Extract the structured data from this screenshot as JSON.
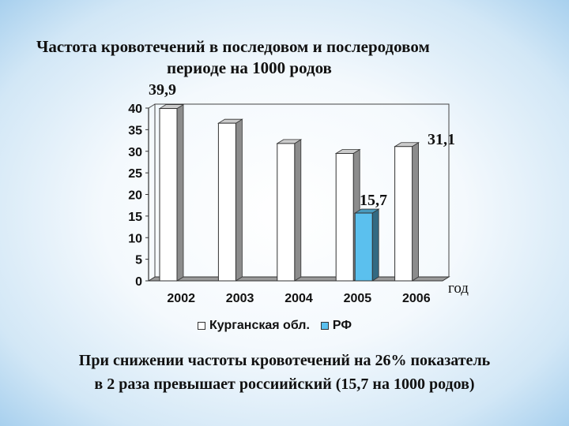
{
  "title": {
    "line1": "Частота кровотечений в последовом и послеродовом",
    "line2": "периоде на 1000 родов"
  },
  "annotations": [
    "39,9",
    "31,1",
    "15,7"
  ],
  "axis_unit_label": "год",
  "footer": {
    "line1": "При снижении частоты кровотечений на 26% показатель",
    "line2": "в 2 раза превышает россиийский (15,7 на 1000 родов)"
  },
  "legend": [
    {
      "label": "Курганская обл.",
      "color": "#ffffff"
    },
    {
      "label": "РФ",
      "color": "#5bc0ee"
    }
  ],
  "chart_data": {
    "type": "bar",
    "categories": [
      "2002",
      "2003",
      "2004",
      "2005",
      "2006"
    ],
    "series": [
      {
        "name": "Курганская обл.",
        "color": "#ffffff",
        "values": [
          39.9,
          36.5,
          31.8,
          29.5,
          31.1
        ]
      },
      {
        "name": "РФ",
        "color": "#5bc0ee",
        "values": [
          null,
          null,
          null,
          15.7,
          null
        ]
      }
    ],
    "yticks": [
      "0",
      "5",
      "10",
      "15",
      "20",
      "25",
      "30",
      "35",
      "40"
    ],
    "ylim": [
      0,
      40
    ],
    "xlabel": "год",
    "ylabel": "",
    "grid": false,
    "legend_position": "bottom"
  }
}
